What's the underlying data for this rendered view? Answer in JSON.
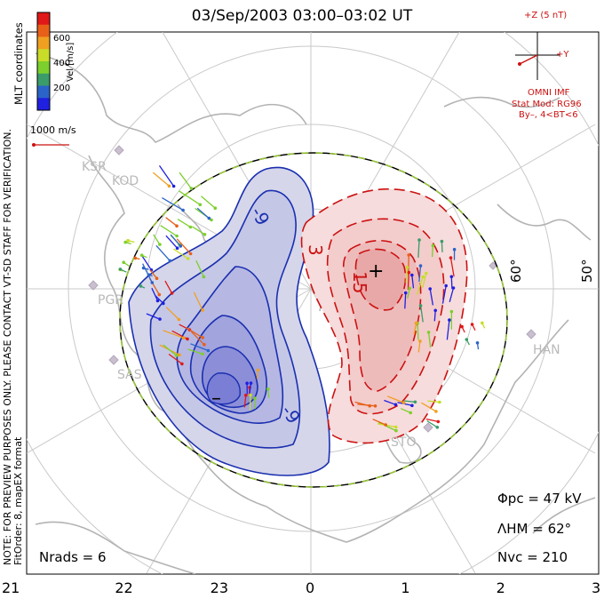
{
  "title": "03/Sep/2003 03:00–03:02 UT",
  "sidebar": {
    "coordinates": "MLT coordinates",
    "notice": "NOTE: FOR PREVIEW PURPOSES ONLY. PLEASE CONTACT VT-SD STAFF FOR VERIFICATION.",
    "fit_info": "FitOrder: 8, mapEX format"
  },
  "colorbar": {
    "label": "Vel [m/s]",
    "ticks": [
      "200",
      "400",
      "600"
    ],
    "colors": [
      "#2020e0",
      "#2a64c8",
      "#3a9c6a",
      "#7ccf2c",
      "#c8dc28",
      "#f0a020",
      "#e86018",
      "#e01818"
    ]
  },
  "velocity_scale": {
    "label": "1000 m/s",
    "color": "#cc1111"
  },
  "imf": {
    "axis_z": "+Z (5 nT)",
    "axis_y": "+Y",
    "source": "OMNI IMF",
    "model": "Stat Mod: RG96",
    "condition": "By–, 4<BT<6",
    "color": "#cc1111"
  },
  "stats": {
    "phi_pc": "Φpc = 47 kV",
    "lambda_hm": "ΛHM = 62°",
    "n_vc": "Nvc = 210",
    "n_rads": "Nrads = 6"
  },
  "stations": [
    "KSR",
    "KOD",
    "PGR",
    "SAS",
    "HAN",
    "STO"
  ],
  "chart_data": {
    "type": "polar-convection-map",
    "title": "03/Sep/2003 03:00–03:02 UT",
    "coordinates": "MLT",
    "mlt_ticks": [
      "21",
      "22",
      "23",
      "0",
      "1",
      "2",
      "3"
    ],
    "latitude_labels": [
      "60°",
      "50°"
    ],
    "heppner_maynard_boundary_deg": 62,
    "cross_polar_cap_potential_kv": 47,
    "n_vectors": 210,
    "n_radars": 6,
    "contours": {
      "negative_cell": {
        "labels": [
          "-9"
        ],
        "extremum_mark": "–",
        "color": "#1a2fb0"
      },
      "positive_cell": {
        "labels": [
          "3",
          "15"
        ],
        "extremum_mark": "+",
        "color": "#cc1111"
      }
    },
    "velocity_range_mps": [
      0,
      800
    ],
    "colors": {
      "negative": "#1a2fb0",
      "positive": "#cc1111",
      "boundary": "#9acd32"
    }
  }
}
